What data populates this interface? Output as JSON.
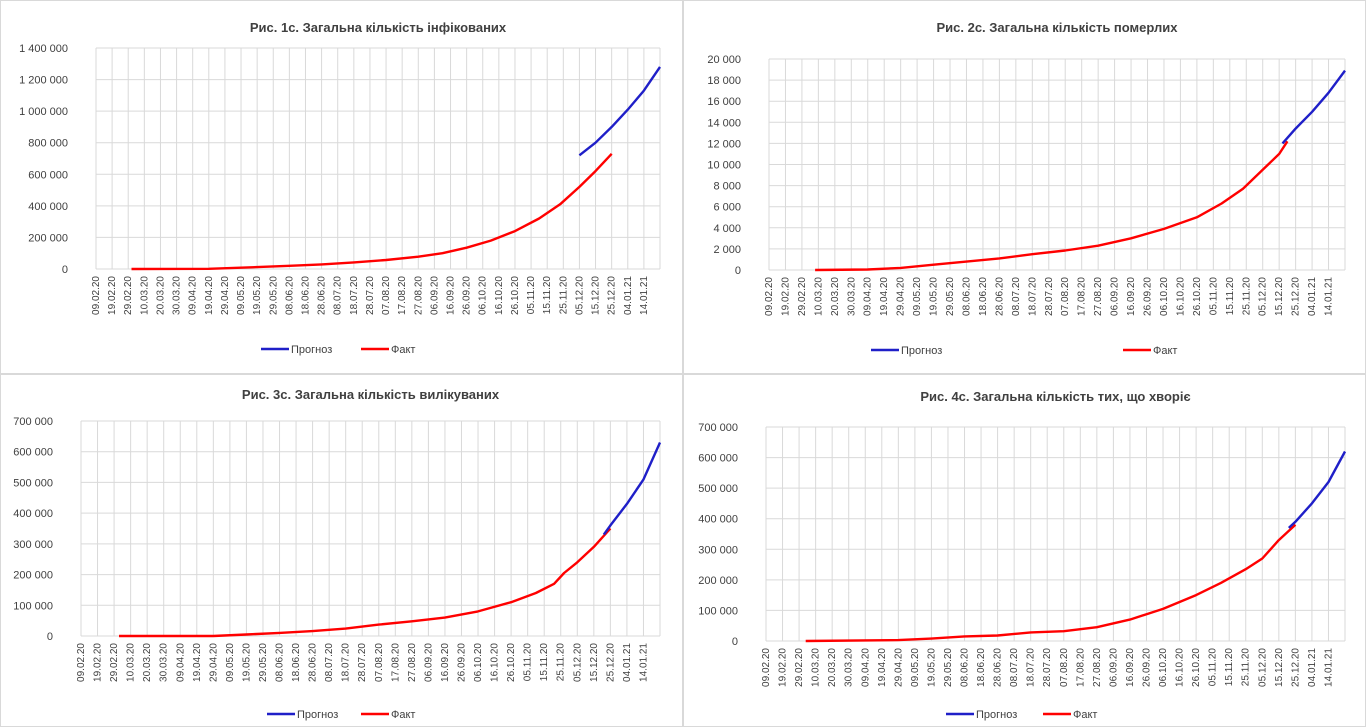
{
  "x_ticks": [
    "09.02.20",
    "19.02.20",
    "29.02.20",
    "10.03.20",
    "20.03.20",
    "30.03.20",
    "09.04.20",
    "19.04.20",
    "29.04.20",
    "09.05.20",
    "19.05.20",
    "29.05.20",
    "08.06.20",
    "18.06.20",
    "28.06.20",
    "08.07.20",
    "18.07.20",
    "28.07.20",
    "07.08.20",
    "17.08.20",
    "27.08.20",
    "06.09.20",
    "16.09.20",
    "26.09.20",
    "06.10.20",
    "16.10.20",
    "26.10.20",
    "05.11.20",
    "15.11.20",
    "25.11.20",
    "05.12.20",
    "15.12.20",
    "25.12.20",
    "04.01.21",
    "14.01.21"
  ],
  "colors": {
    "forecast": "#1f1fc8",
    "fact": "#ff0000",
    "grid": "#d9d9d9"
  },
  "chart_data": [
    {
      "type": "line",
      "title": "Рис. 1с. Загальна кількість інфікованих",
      "ylim": [
        0,
        1400000
      ],
      "y_ticks": [
        "0",
        "200 000",
        "400 000",
        "600 000",
        "800 000",
        "1 000 000",
        "1 200 000",
        "1 400 000"
      ],
      "series": [
        {
          "name": "Прогноз",
          "color": "#1f1fc8",
          "points": [
            [
              30,
              720000
            ],
            [
              31,
              800000
            ],
            [
              32,
              900000
            ],
            [
              33,
              1010000
            ],
            [
              34,
              1130000
            ],
            [
              35,
              1280000
            ]
          ]
        },
        {
          "name": "Факт",
          "color": "#ff0000",
          "points": [
            [
              2.2,
              0
            ],
            [
              7,
              1000
            ],
            [
              10,
              12000
            ],
            [
              12,
              20000
            ],
            [
              14,
              29000
            ],
            [
              16,
              42000
            ],
            [
              18,
              57000
            ],
            [
              20,
              78000
            ],
            [
              21.5,
              100000
            ],
            [
              23,
              135000
            ],
            [
              24.5,
              180000
            ],
            [
              26,
              240000
            ],
            [
              27.5,
              320000
            ],
            [
              28.8,
              410000
            ],
            [
              30,
              520000
            ],
            [
              31,
              620000
            ],
            [
              32,
              730000
            ]
          ]
        }
      ]
    },
    {
      "type": "line",
      "title": "Рис. 2с. Загальна кількість померлих",
      "ylim": [
        0,
        20000
      ],
      "y_ticks": [
        "0",
        "2 000",
        "4 000",
        "6 000",
        "8 000",
        "10 000",
        "12 000",
        "14 000",
        "16 000",
        "18 000",
        "20 000"
      ],
      "series": [
        {
          "name": "Прогноз",
          "color": "#1f1fc8",
          "points": [
            [
              31.2,
              12000
            ],
            [
              32,
              13400
            ],
            [
              33,
              15000
            ],
            [
              34,
              16800
            ],
            [
              35,
              18900
            ]
          ]
        },
        {
          "name": "Факт",
          "color": "#ff0000",
          "points": [
            [
              2.8,
              0
            ],
            [
              6,
              50
            ],
            [
              8,
              200
            ],
            [
              10,
              500
            ],
            [
              12,
              800
            ],
            [
              14,
              1100
            ],
            [
              16,
              1500
            ],
            [
              18,
              1850
            ],
            [
              20,
              2300
            ],
            [
              22,
              3000
            ],
            [
              24,
              3900
            ],
            [
              26,
              5000
            ],
            [
              27.5,
              6300
            ],
            [
              28.8,
              7700
            ],
            [
              30,
              9500
            ],
            [
              31,
              11000
            ],
            [
              31.5,
              12200
            ]
          ]
        }
      ]
    },
    {
      "type": "line",
      "title": "Рис. 3с. Загальна кількість вилікуваних",
      "ylim": [
        0,
        700000
      ],
      "y_ticks": [
        "0",
        "100 000",
        "200 000",
        "300 000",
        "400 000",
        "500 000",
        "600 000",
        "700 000"
      ],
      "series": [
        {
          "name": "Прогноз",
          "color": "#1f1fc8",
          "points": [
            [
              31.6,
              330000
            ],
            [
              32,
              360000
            ],
            [
              33,
              430000
            ],
            [
              34,
              510000
            ],
            [
              35,
              630000
            ]
          ]
        },
        {
          "name": "Факт",
          "color": "#ff0000",
          "points": [
            [
              2.3,
              0
            ],
            [
              8,
              0
            ],
            [
              10,
              5000
            ],
            [
              12,
              10000
            ],
            [
              14,
              16000
            ],
            [
              16,
              24000
            ],
            [
              18,
              37000
            ],
            [
              20,
              48000
            ],
            [
              22,
              60000
            ],
            [
              24,
              80000
            ],
            [
              26,
              110000
            ],
            [
              27.5,
              140000
            ],
            [
              28.6,
              170000
            ],
            [
              29.2,
              205000
            ],
            [
              30,
              240000
            ],
            [
              31,
              290000
            ],
            [
              32,
              350000
            ]
          ]
        }
      ]
    },
    {
      "type": "line",
      "title": "Рис. 4с. Загальна кількість тих, що хворіє",
      "ylim": [
        0,
        700000
      ],
      "y_ticks": [
        "0",
        "100 000",
        "200 000",
        "300 000",
        "400 000",
        "500 000",
        "600 000",
        "700 000"
      ],
      "series": [
        {
          "name": "Прогноз",
          "color": "#1f1fc8",
          "points": [
            [
              31.6,
              370000
            ],
            [
              32,
              390000
            ],
            [
              33,
              450000
            ],
            [
              34,
              520000
            ],
            [
              35,
              620000
            ]
          ]
        },
        {
          "name": "Факт",
          "color": "#ff0000",
          "points": [
            [
              2.4,
              0
            ],
            [
              8,
              3000
            ],
            [
              10,
              8000
            ],
            [
              12,
              15000
            ],
            [
              14,
              18000
            ],
            [
              16,
              28000
            ],
            [
              18,
              32000
            ],
            [
              20,
              45000
            ],
            [
              22,
              70000
            ],
            [
              24,
              105000
            ],
            [
              26,
              150000
            ],
            [
              27.5,
              190000
            ],
            [
              29,
              235000
            ],
            [
              30,
              270000
            ],
            [
              31,
              330000
            ],
            [
              32,
              380000
            ]
          ]
        }
      ]
    }
  ]
}
